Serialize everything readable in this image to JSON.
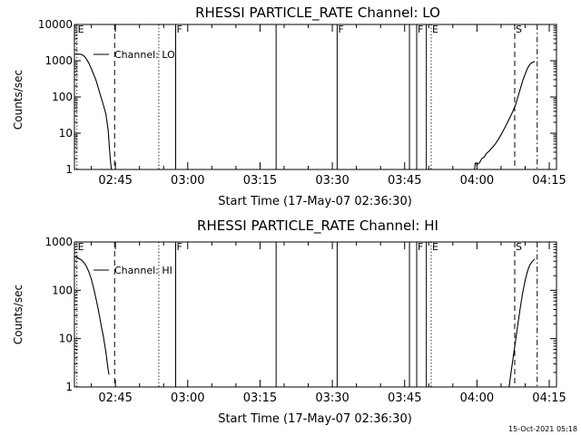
{
  "footer_timestamp": "15-Oct-2021 05:18",
  "colors": {
    "background": "#ffffff",
    "foreground": "#000000"
  },
  "chart_data": [
    {
      "type": "line",
      "title": "RHESSI PARTICLE_RATE Channel: LO",
      "xlabel": "Start Time (17-May-07 02:36:30)",
      "ylabel": "Counts/sec",
      "legend": "Channel: LO",
      "legend_placement": "top-left",
      "y_scale": "log",
      "ylim": [
        1,
        10000
      ],
      "y_ticks": [
        1,
        10,
        100,
        1000,
        10000
      ],
      "y_tick_labels": [
        "1",
        "10",
        "100",
        "1000",
        "10000"
      ],
      "xlim": [
        "02:36:30",
        "04:16:30"
      ],
      "x_ticks": [
        "02:45",
        "03:00",
        "03:15",
        "03:30",
        "03:45",
        "04:00",
        "04:15"
      ],
      "series": [
        {
          "name": "Channel: LO",
          "segments": [
            [
              [
                "02:36:30",
                1500
              ],
              [
                "02:37:00",
                1550
              ],
              [
                "02:38:00",
                1480
              ],
              [
                "02:38:30",
                1350
              ],
              [
                "02:39:00",
                1100
              ],
              [
                "02:39:30",
                850
              ],
              [
                "02:40:00",
                600
              ],
              [
                "02:40:30",
                420
              ],
              [
                "02:41:00",
                280
              ],
              [
                "02:41:30",
                170
              ],
              [
                "02:42:00",
                100
              ],
              [
                "02:42:30",
                60
              ],
              [
                "02:43:00",
                35
              ],
              [
                "02:43:30",
                12
              ],
              [
                "02:43:45",
                4
              ],
              [
                "02:44:00",
                1.6
              ],
              [
                "02:44:10",
                1
              ]
            ],
            [
              [
                "03:59:30",
                1
              ],
              [
                "03:59:40",
                1.5
              ],
              [
                "04:00:00",
                1.4
              ],
              [
                "04:00:30",
                1.5
              ],
              [
                "04:01:00",
                2
              ],
              [
                "04:01:30",
                2.2
              ],
              [
                "04:02:00",
                2.8
              ],
              [
                "04:02:30",
                3.2
              ],
              [
                "04:03:00",
                3.8
              ],
              [
                "04:03:30",
                4.5
              ],
              [
                "04:04:00",
                5.5
              ],
              [
                "04:04:30",
                7
              ],
              [
                "04:05:00",
                9
              ],
              [
                "04:05:30",
                12
              ],
              [
                "04:06:00",
                16
              ],
              [
                "04:06:30",
                22
              ],
              [
                "04:07:00",
                30
              ],
              [
                "04:07:30",
                42
              ],
              [
                "04:08:00",
                60
              ],
              [
                "04:08:30",
                100
              ],
              [
                "04:09:00",
                170
              ],
              [
                "04:09:30",
                280
              ],
              [
                "04:10:00",
                430
              ],
              [
                "04:10:30",
                620
              ],
              [
                "04:11:00",
                800
              ],
              [
                "04:11:30",
                900
              ],
              [
                "04:12:00",
                950
              ]
            ]
          ]
        }
      ],
      "event_lines": [
        {
          "time": "02:37:00",
          "style": "dotted",
          "label": "E"
        },
        {
          "time": "02:44:50",
          "style": "dashed",
          "label": ""
        },
        {
          "time": "02:54:00",
          "style": "dotted",
          "label": ""
        },
        {
          "time": "02:57:30",
          "style": "solid",
          "label": "F"
        },
        {
          "time": "03:18:20",
          "style": "solid",
          "label": ""
        },
        {
          "time": "03:31:00",
          "style": "solid",
          "label": "F"
        },
        {
          "time": "03:46:00",
          "style": "solid",
          "label": ""
        },
        {
          "time": "03:47:30",
          "style": "solid",
          "label": "F"
        },
        {
          "time": "03:49:30",
          "style": "solid",
          "label": ""
        },
        {
          "time": "03:50:30",
          "style": "dotted",
          "label": "E"
        },
        {
          "time": "04:07:50",
          "style": "dashed",
          "label": "S"
        },
        {
          "time": "04:12:30",
          "style": "dashdot",
          "label": ""
        }
      ]
    },
    {
      "type": "line",
      "title": "RHESSI PARTICLE_RATE Channel: HI",
      "xlabel": "Start Time (17-May-07 02:36:30)",
      "ylabel": "Counts/sec",
      "legend": "Channel: HI",
      "legend_placement": "top-left",
      "y_scale": "log",
      "ylim": [
        1,
        1000
      ],
      "y_ticks": [
        1,
        10,
        100,
        1000
      ],
      "y_tick_labels": [
        "1",
        "10",
        "100",
        "1000"
      ],
      "xlim": [
        "02:36:30",
        "04:16:30"
      ],
      "x_ticks": [
        "02:45",
        "03:00",
        "03:15",
        "03:30",
        "03:45",
        "04:00",
        "04:15"
      ],
      "series": [
        {
          "name": "Channel: HI",
          "segments": [
            [
              [
                "02:36:30",
                500
              ],
              [
                "02:37:00",
                480
              ],
              [
                "02:38:00",
                420
              ],
              [
                "02:38:30",
                370
              ],
              [
                "02:39:00",
                310
              ],
              [
                "02:39:30",
                240
              ],
              [
                "02:40:00",
                170
              ],
              [
                "02:40:30",
                110
              ],
              [
                "02:41:00",
                65
              ],
              [
                "02:41:30",
                38
              ],
              [
                "02:42:00",
                20
              ],
              [
                "02:42:30",
                11
              ],
              [
                "02:43:00",
                5.5
              ],
              [
                "02:43:30",
                2.2
              ],
              [
                "02:43:40",
                1.8
              ]
            ],
            [
              [
                "04:06:40",
                1
              ],
              [
                "04:07:00",
                1.8
              ],
              [
                "04:07:30",
                4
              ],
              [
                "04:08:00",
                9
              ],
              [
                "04:08:30",
                20
              ],
              [
                "04:09:00",
                45
              ],
              [
                "04:09:30",
                90
              ],
              [
                "04:10:00",
                160
              ],
              [
                "04:10:30",
                250
              ],
              [
                "04:11:00",
                340
              ],
              [
                "04:11:30",
                400
              ],
              [
                "04:12:00",
                440
              ]
            ]
          ]
        }
      ],
      "event_lines": [
        {
          "time": "02:37:00",
          "style": "dotted",
          "label": "E"
        },
        {
          "time": "02:44:50",
          "style": "dashed",
          "label": ""
        },
        {
          "time": "02:54:00",
          "style": "dotted",
          "label": ""
        },
        {
          "time": "02:57:30",
          "style": "solid",
          "label": "F"
        },
        {
          "time": "03:18:20",
          "style": "solid",
          "label": ""
        },
        {
          "time": "03:31:00",
          "style": "solid",
          "label": ""
        },
        {
          "time": "03:46:00",
          "style": "solid",
          "label": ""
        },
        {
          "time": "03:47:30",
          "style": "solid",
          "label": "F"
        },
        {
          "time": "03:49:30",
          "style": "solid",
          "label": ""
        },
        {
          "time": "03:50:30",
          "style": "dotted",
          "label": "E"
        },
        {
          "time": "04:07:50",
          "style": "dashed",
          "label": "S"
        },
        {
          "time": "04:12:30",
          "style": "dashdot",
          "label": ""
        }
      ]
    }
  ]
}
